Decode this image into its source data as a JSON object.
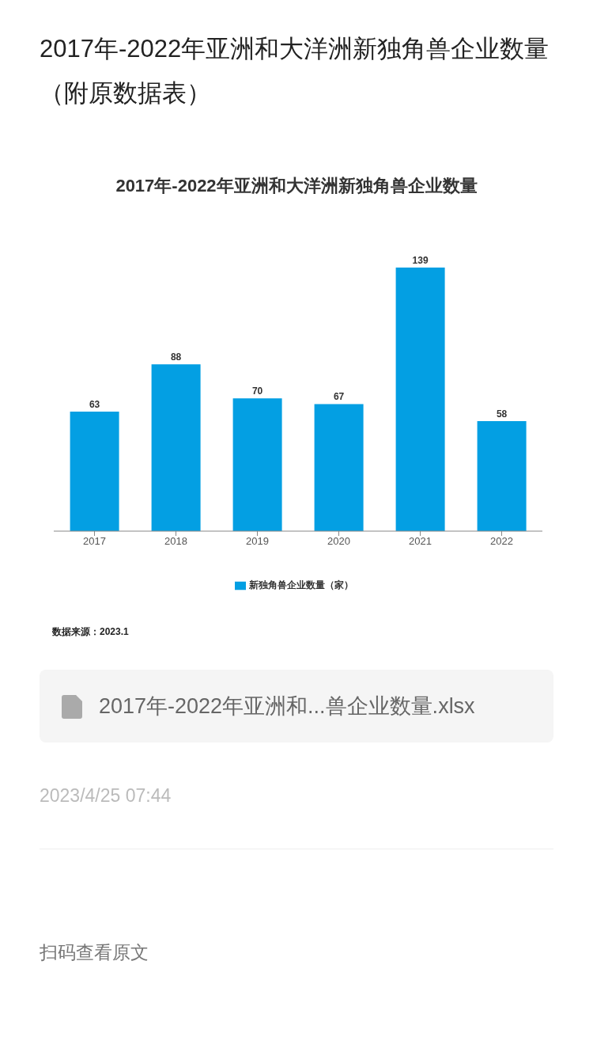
{
  "chart_data": {
    "type": "bar",
    "title": "2017年-2022年亚洲和大洋洲新独角兽企业数量（附原数据表）",
    "subtitle": "2017年-2022年亚洲和大洋洲新独角兽企业数量",
    "categories": [
      "2017",
      "2018",
      "2019",
      "2020",
      "2021",
      "2022"
    ],
    "series": [
      {
        "name": "新独角兽企业数量（家）",
        "color": "#039fe3",
        "values": [
          63,
          88,
          70,
          67,
          139,
          58
        ]
      }
    ],
    "data_labels": true,
    "legend": "bottom",
    "grid": false,
    "annotations": [
      "数据来源：2023.1",
      "2017年-2022年亚洲和...兽企业数量.xlsx",
      "2023/4/25 07:44",
      "扫码查看原文"
    ]
  }
}
